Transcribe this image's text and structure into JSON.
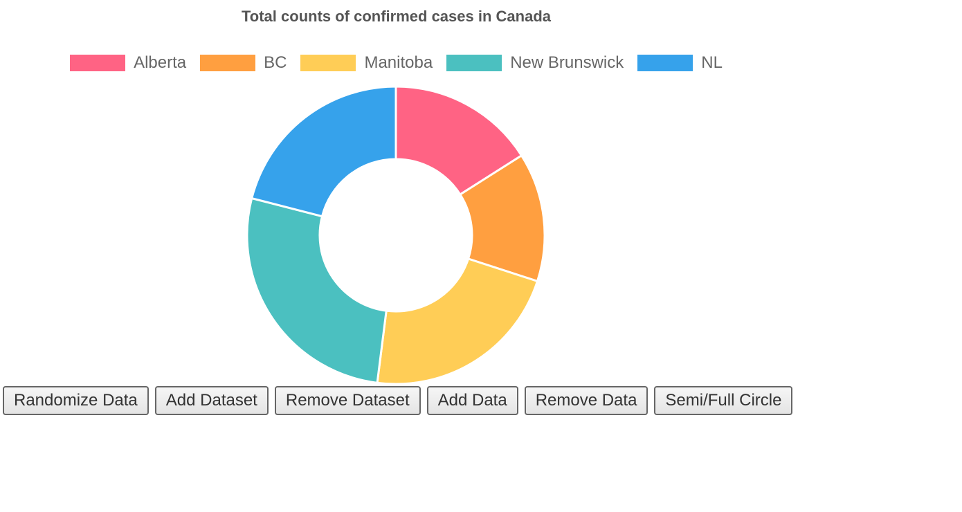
{
  "chart_data": {
    "type": "pie",
    "variant": "doughnut",
    "title": "Total counts of confirmed cases in Canada",
    "legend_position": "top",
    "categories": [
      "Alberta",
      "BC",
      "Manitoba",
      "New Brunswick",
      "NL"
    ],
    "values": [
      16,
      14,
      22,
      27,
      21
    ],
    "colors": [
      "#ff6384",
      "#ff9f40",
      "#ffcd56",
      "#4bc0c0",
      "#36a2eb"
    ]
  },
  "controls": {
    "randomize_label": "Randomize Data",
    "add_dataset_label": "Add Dataset",
    "remove_dataset_label": "Remove Dataset",
    "add_data_label": "Add Data",
    "remove_data_label": "Remove Data",
    "semi_full_label": "Semi/Full Circle"
  }
}
